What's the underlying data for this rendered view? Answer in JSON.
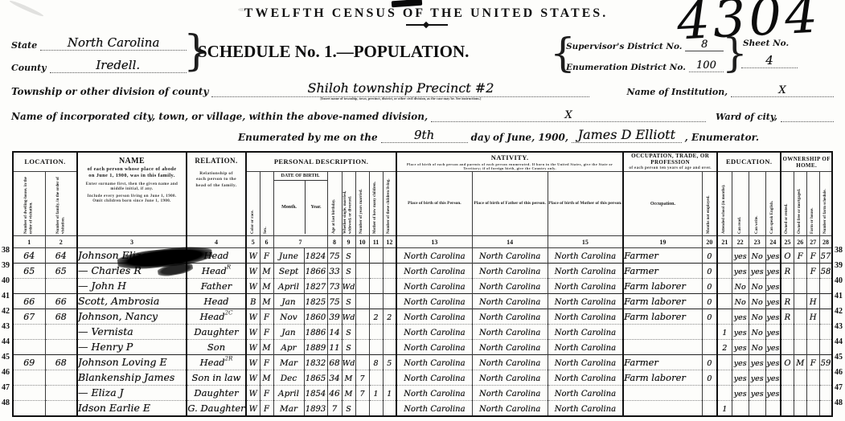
{
  "header": {
    "census_title": "TWELFTH CENSUS OF THE UNITED STATES.",
    "big_sheet_number": "4304",
    "schedule_title": "SCHEDULE No. 1.—POPULATION.",
    "state_label": "State",
    "state_value": "North Carolina",
    "county_label": "County",
    "county_value": "Iredell.",
    "supervisor_district_label": "Supervisor's District No.",
    "supervisor_district_value": "8",
    "enumeration_district_label": "Enumeration District No.",
    "enumeration_district_value": "100",
    "sheet_no_label": "Sheet No.",
    "sheet_no_value": "4",
    "township_label": "Township or other division of county",
    "township_value": "Shiloh township Precinct #2",
    "township_note": "[Insert name of township, town, precinct, district, or other civil division, as the case may be. See instructions.]",
    "institution_label": "Name of Institution,",
    "institution_value": "X",
    "city_label": "Name of incorporated city, town, or village, within the above-named division,",
    "city_value": "X",
    "ward_label": "Ward of city,",
    "enumerated_label": "Enumerated by me on the",
    "enumerated_day": "9th",
    "enumerated_date_label": "day of June, 1900,",
    "enumerator_name": "James D Elliott",
    "enumerator_label": ", Enumerator."
  },
  "table": {
    "location_heading": "LOCATION.",
    "col_dwelling": "Number of dwelling-house, in the order of visitation.",
    "col_family": "Number of family, in the order of visitation.",
    "name_heading": "NAME",
    "name_note1": "of each person whose place of abode on June 1, 1900, was in this family.",
    "name_note2": "Enter surname first, then the given name and middle initial, if any.",
    "name_note3": "Include every person living on June 1, 1900. Omit children born since June 1, 1900.",
    "relation_heading": "RELATION.",
    "relation_note": "Relationship of each person to the head of the family.",
    "personal_heading": "PERSONAL DESCRIPTION.",
    "col_color": "Color or race.",
    "col_sex": "Sex.",
    "dob_heading": "DATE OF BIRTH.",
    "dob_month": "Month.",
    "dob_year": "Year.",
    "col_age": "Age at last birthday.",
    "col_marital": "Whether single, married, widowed, or divorced.",
    "col_years_married": "Number of years married.",
    "col_mother_of": "Mother of how many children.",
    "col_children_living": "Number of these children living.",
    "nativity_heading": "NATIVITY.",
    "nativity_note": "Place of birth of each person and parents of each person enumerated. If born in the United States, give the State or Territory; if of foreign birth, give the Country only.",
    "col_birthplace": "Place of birth of this Person.",
    "col_father_birthplace": "Place of birth of Father of this person.",
    "col_mother_birthplace": "Place of birth of Mother of this person.",
    "occupation_heading": "OCCUPATION, TRADE, OR PROFESSION",
    "occupation_note": "of each person ten years of age and over.",
    "col_occupation": "Occupation.",
    "col_months_not_employed": "Months not employed.",
    "education_heading": "EDUCATION.",
    "col_attended_school": "Attended school (in months).",
    "col_can_read": "Can read.",
    "col_can_write": "Can write.",
    "col_speaks_english": "Can speak English.",
    "ownership_heading": "OWNERSHIP OF HOME.",
    "col_owned_rented": "Owned or rented.",
    "col_free_mortgaged": "Owned free or mortgaged.",
    "col_farm_house": "Farm or house.",
    "col_farm_schedule": "Number of farm schedule.",
    "column_numbers": [
      "1",
      "2",
      "3",
      "4",
      "5",
      "6",
      "7",
      "8",
      "9",
      "10",
      "11",
      "12",
      "13",
      "14",
      "15",
      "19",
      "20",
      "21",
      "22",
      "23",
      "24",
      "25",
      "26",
      "27",
      "28"
    ],
    "rows": [
      {
        "row_no": "38",
        "heavy": false,
        "dwelling_no": "64",
        "family_no": "64",
        "name": "Johnson Eliza",
        "relation": "Head",
        "relation_sup": "",
        "color": "W",
        "sex": "F",
        "birth_month": "June",
        "birth_year": "1824",
        "age": "75",
        "marital": "S",
        "years_married": "",
        "mother_of": "",
        "children_living": "",
        "birthplace": "North Carolina",
        "father_birthplace": "North Carolina",
        "mother_birthplace": "North Carolina",
        "occupation": "Farmer",
        "months_not_employed": "0",
        "attended_school": "",
        "can_read": "yes",
        "can_write": "No",
        "speaks_english": "yes",
        "owned_rented": "O",
        "free_mortgaged": "F",
        "farm_house": "F",
        "farm_schedule": "57"
      },
      {
        "row_no": "39",
        "heavy": true,
        "dwelling_no": "65",
        "family_no": "65",
        "name": "— Charles R",
        "relation": "Head",
        "relation_sup": "R",
        "color": "W",
        "sex": "M",
        "birth_month": "Sept",
        "birth_year": "1866",
        "age": "33",
        "marital": "S",
        "years_married": "",
        "mother_of": "",
        "children_living": "",
        "birthplace": "North Carolina",
        "father_birthplace": "North Carolina",
        "mother_birthplace": "North Carolina",
        "occupation": "Farmer",
        "months_not_employed": "0",
        "attended_school": "",
        "can_read": "yes",
        "can_write": "yes",
        "speaks_english": "yes",
        "owned_rented": "R",
        "free_mortgaged": "",
        "farm_house": "F",
        "farm_schedule": "58"
      },
      {
        "row_no": "40",
        "heavy": false,
        "dwelling_no": "",
        "family_no": "",
        "name": "— John H",
        "relation": "Father",
        "relation_sup": "",
        "color": "W",
        "sex": "M",
        "birth_month": "April",
        "birth_year": "1827",
        "age": "73",
        "marital": "Wd",
        "years_married": "",
        "mother_of": "",
        "children_living": "",
        "birthplace": "North Carolina",
        "father_birthplace": "North Carolina",
        "mother_birthplace": "North Carolina",
        "occupation": "Farm laborer",
        "months_not_employed": "0",
        "attended_school": "",
        "can_read": "No",
        "can_write": "No",
        "speaks_english": "yes",
        "owned_rented": "",
        "free_mortgaged": "",
        "farm_house": "",
        "farm_schedule": ""
      },
      {
        "row_no": "41",
        "heavy": true,
        "dwelling_no": "66",
        "family_no": "66",
        "name": "Scott, Ambrosia",
        "relation": "Head",
        "relation_sup": "",
        "color": "B",
        "sex": "M",
        "birth_month": "Jan",
        "birth_year": "1825",
        "age": "75",
        "marital": "S",
        "years_married": "",
        "mother_of": "",
        "children_living": "",
        "birthplace": "North Carolina",
        "father_birthplace": "North Carolina",
        "mother_birthplace": "North Carolina",
        "occupation": "Farm laborer",
        "months_not_employed": "0",
        "attended_school": "",
        "can_read": "No",
        "can_write": "No",
        "speaks_english": "yes",
        "owned_rented": "R",
        "free_mortgaged": "",
        "farm_house": "H",
        "farm_schedule": ""
      },
      {
        "row_no": "42",
        "heavy": true,
        "dwelling_no": "67",
        "family_no": "68",
        "name": "Johnson, Nancy",
        "relation": "Head",
        "relation_sup": "2C",
        "color": "W",
        "sex": "F",
        "birth_month": "Nov",
        "birth_year": "1860",
        "age": "39",
        "marital": "Wd",
        "years_married": "",
        "mother_of": "2",
        "children_living": "2",
        "birthplace": "North Carolina",
        "father_birthplace": "North Carolina",
        "mother_birthplace": "North Carolina",
        "occupation": "Farm laborer",
        "months_not_employed": "0",
        "attended_school": "",
        "can_read": "yes",
        "can_write": "No",
        "speaks_english": "yes",
        "owned_rented": "R",
        "free_mortgaged": "",
        "farm_house": "H",
        "farm_schedule": ""
      },
      {
        "row_no": "43",
        "heavy": false,
        "dwelling_no": "",
        "family_no": "",
        "name": "— Vernista",
        "relation": "Daughter",
        "relation_sup": "",
        "color": "W",
        "sex": "F",
        "birth_month": "Jan",
        "birth_year": "1886",
        "age": "14",
        "marital": "S",
        "years_married": "",
        "mother_of": "",
        "children_living": "",
        "birthplace": "North Carolina",
        "father_birthplace": "North Carolina",
        "mother_birthplace": "North Carolina",
        "occupation": "",
        "months_not_employed": "",
        "attended_school": "1",
        "can_read": "yes",
        "can_write": "No",
        "speaks_english": "yes",
        "owned_rented": "",
        "free_mortgaged": "",
        "farm_house": "",
        "farm_schedule": ""
      },
      {
        "row_no": "44",
        "heavy": false,
        "dwelling_no": "",
        "family_no": "",
        "name": "— Henry P",
        "relation": "Son",
        "relation_sup": "",
        "color": "W",
        "sex": "M",
        "birth_month": "Apr",
        "birth_year": "1889",
        "age": "11",
        "marital": "S",
        "years_married": "",
        "mother_of": "",
        "children_living": "",
        "birthplace": "North Carolina",
        "father_birthplace": "North Carolina",
        "mother_birthplace": "North Carolina",
        "occupation": "",
        "months_not_employed": "",
        "attended_school": "2",
        "can_read": "yes",
        "can_write": "No",
        "speaks_english": "yes",
        "owned_rented": "",
        "free_mortgaged": "",
        "farm_house": "",
        "farm_schedule": ""
      },
      {
        "row_no": "45",
        "heavy": true,
        "dwelling_no": "69",
        "family_no": "68",
        "name": "Johnson Loving E",
        "relation": "Head",
        "relation_sup": "2R",
        "color": "W",
        "sex": "F",
        "birth_month": "Mar",
        "birth_year": "1832",
        "age": "68",
        "marital": "Wd",
        "years_married": "",
        "mother_of": "8",
        "children_living": "5",
        "birthplace": "North Carolina",
        "father_birthplace": "North Carolina",
        "mother_birthplace": "North Carolina",
        "occupation": "Farmer",
        "months_not_employed": "0",
        "attended_school": "",
        "can_read": "yes",
        "can_write": "yes",
        "speaks_english": "yes",
        "owned_rented": "O",
        "free_mortgaged": "M",
        "farm_house": "F",
        "farm_schedule": "59"
      },
      {
        "row_no": "46",
        "heavy": false,
        "dwelling_no": "",
        "family_no": "",
        "name": "Blankenship James",
        "relation": "Son in law",
        "relation_sup": "",
        "color": "W",
        "sex": "M",
        "birth_month": "Dec",
        "birth_year": "1865",
        "age": "34",
        "marital": "M",
        "years_married": "7",
        "mother_of": "",
        "children_living": "",
        "birthplace": "North Carolina",
        "father_birthplace": "North Carolina",
        "mother_birthplace": "North Carolina",
        "occupation": "Farm laborer",
        "months_not_employed": "0",
        "attended_school": "",
        "can_read": "yes",
        "can_write": "yes",
        "speaks_english": "yes",
        "owned_rented": "",
        "free_mortgaged": "",
        "farm_house": "",
        "farm_schedule": ""
      },
      {
        "row_no": "47",
        "heavy": false,
        "dwelling_no": "",
        "family_no": "",
        "name": "— Eliza J",
        "relation": "Daughter",
        "relation_sup": "",
        "color": "W",
        "sex": "F",
        "birth_month": "April",
        "birth_year": "1854",
        "age": "46",
        "marital": "M",
        "years_married": "7",
        "mother_of": "1",
        "children_living": "1",
        "birthplace": "North Carolina",
        "father_birthplace": "North Carolina",
        "mother_birthplace": "North Carolina",
        "occupation": "",
        "months_not_employed": "",
        "attended_school": "",
        "can_read": "yes",
        "can_write": "yes",
        "speaks_english": "yes",
        "owned_rented": "",
        "free_mortgaged": "",
        "farm_house": "",
        "farm_schedule": ""
      },
      {
        "row_no": "48",
        "heavy": false,
        "dwelling_no": "",
        "family_no": "",
        "name": "Idson Earlie E",
        "relation": "G. Daughter",
        "relation_sup": "",
        "color": "W",
        "sex": "F",
        "birth_month": "Mar",
        "birth_year": "1893",
        "age": "7",
        "marital": "S",
        "years_married": "",
        "mother_of": "",
        "children_living": "",
        "birthplace": "North Carolina",
        "father_birthplace": "North Carolina",
        "mother_birthplace": "North Carolina",
        "occupation": "",
        "months_not_employed": "",
        "attended_school": "1",
        "can_read": "",
        "can_write": "",
        "speaks_english": "",
        "owned_rented": "",
        "free_mortgaged": "",
        "farm_house": "",
        "farm_schedule": ""
      }
    ]
  }
}
